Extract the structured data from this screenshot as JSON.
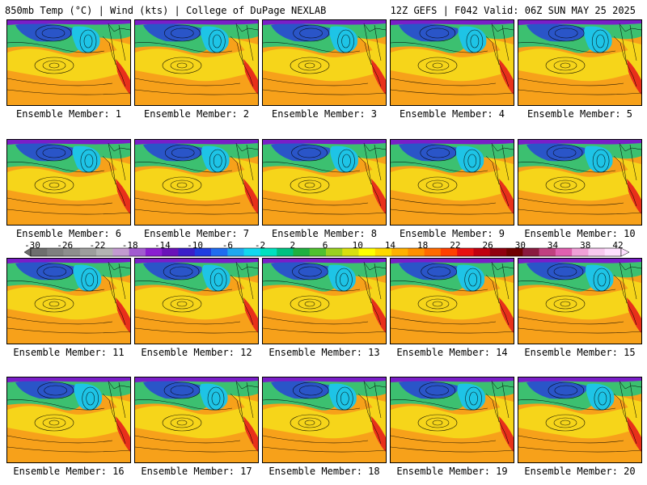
{
  "header": {
    "left_title": "850mb Temp (°C) | Wind (kts) | College of DuPage NEXLAB",
    "right_title": "12Z GEFS | F042 Valid: 06Z SUN MAY 25 2025"
  },
  "panels": [
    {
      "label": "Ensemble Member: 1"
    },
    {
      "label": "Ensemble Member: 2"
    },
    {
      "label": "Ensemble Member: 3"
    },
    {
      "label": "Ensemble Member: 4"
    },
    {
      "label": "Ensemble Member: 5"
    },
    {
      "label": "Ensemble Member: 6"
    },
    {
      "label": "Ensemble Member: 7"
    },
    {
      "label": "Ensemble Member: 8"
    },
    {
      "label": "Ensemble Member: 9"
    },
    {
      "label": "Ensemble Member: 10"
    },
    {
      "label": "Ensemble Member: 11"
    },
    {
      "label": "Ensemble Member: 12"
    },
    {
      "label": "Ensemble Member: 13"
    },
    {
      "label": "Ensemble Member: 14"
    },
    {
      "label": "Ensemble Member: 15"
    },
    {
      "label": "Ensemble Member: 16"
    },
    {
      "label": "Ensemble Member: 17"
    },
    {
      "label": "Ensemble Member: 18"
    },
    {
      "label": "Ensemble Member: 19"
    },
    {
      "label": "Ensemble Member: 20"
    }
  ],
  "colorbar": {
    "labels": [
      "-30",
      "-26",
      "-22",
      "-18",
      "-14",
      "-10",
      "-6",
      "-2",
      "2",
      "6",
      "10",
      "14",
      "18",
      "22",
      "26",
      "30",
      "34",
      "38",
      "42"
    ],
    "colors": [
      "#6e6e6e",
      "#7f7f7f",
      "#8e8e8e",
      "#9d9d9d",
      "#b3b3b3",
      "#c39ad0",
      "#a25bd0",
      "#8a1ed0",
      "#6a12b8",
      "#3b1ec8",
      "#1f3ce0",
      "#1f6cf0",
      "#1fa8f0",
      "#12d8f0",
      "#00e0c0",
      "#00c080",
      "#1fb040",
      "#4fc030",
      "#9ad020",
      "#d8e010",
      "#ffff00",
      "#ffd800",
      "#ffb000",
      "#ff9000",
      "#ff6a00",
      "#ff4000",
      "#e81010",
      "#c00010",
      "#900010",
      "#700000",
      "#8a1a40",
      "#c04080",
      "#e060b0",
      "#f0a0d8",
      "#f8c8f0",
      "#ffe0ff"
    ]
  },
  "palette": {
    "ocean_warm": "#f7a11a",
    "subtropical": "#f6d51a",
    "cold_low": "#2a55c8",
    "cyan_trough": "#1ec4e6",
    "green_band": "#3cc070",
    "hot_land": "#e8301a"
  }
}
